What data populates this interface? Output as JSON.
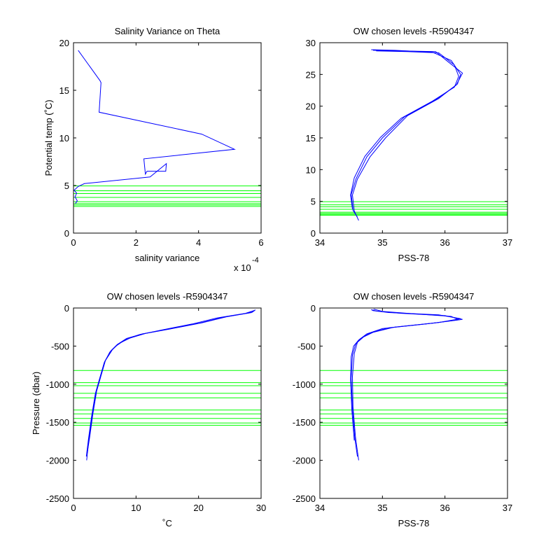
{
  "chart_data": [
    {
      "type": "line",
      "title": "Salinity Variance on Theta",
      "xlabel": "salinity variance",
      "ylabel": "Potential temp (˚C)",
      "x_exponent_label": "x 10",
      "x_exponent_power": "-4",
      "xlim": [
        0,
        6
      ],
      "ylim": [
        0,
        20
      ],
      "xticks": [
        0,
        2,
        4,
        6
      ],
      "yticks": [
        0,
        5,
        10,
        15,
        20
      ],
      "grid": false,
      "series": [
        {
          "color": "#0000ff",
          "points": [
            [
              0.15,
              19.2
            ],
            [
              0.85,
              16.0
            ],
            [
              0.88,
              15.8
            ],
            [
              0.82,
              12.7
            ],
            [
              4.1,
              10.4
            ],
            [
              5.15,
              8.8
            ],
            [
              2.25,
              7.8
            ],
            [
              2.3,
              6.2
            ],
            [
              2.35,
              6.5
            ],
            [
              2.95,
              6.5
            ],
            [
              2.97,
              7.3
            ],
            [
              2.45,
              5.9
            ],
            [
              0.35,
              5.2
            ],
            [
              0.15,
              4.9
            ],
            [
              0.02,
              4.5
            ],
            [
              0.1,
              4.2
            ],
            [
              0.05,
              3.8
            ],
            [
              0.12,
              3.4
            ],
            [
              0.06,
              3.1
            ]
          ]
        }
      ],
      "level_lines": {
        "color": "#00ff00",
        "values": [
          4.95,
          4.45,
          4.15,
          3.75,
          3.3,
          3.1,
          2.95,
          2.8
        ]
      }
    },
    {
      "type": "line",
      "title": "OW chosen levels -R5904347",
      "xlabel": "PSS-78",
      "ylabel": "",
      "xlim": [
        34,
        37
      ],
      "ylim": [
        0,
        30
      ],
      "xticks": [
        34,
        35,
        36,
        37
      ],
      "yticks": [
        0,
        5,
        10,
        15,
        20,
        25,
        30
      ],
      "grid": false,
      "series": [
        {
          "color": "#0000ff",
          "points": [
            [
              34.82,
              28.9
            ],
            [
              35.2,
              28.8
            ],
            [
              35.8,
              28.5
            ],
            [
              36.1,
              27.2
            ],
            [
              36.25,
              25.0
            ],
            [
              36.2,
              23.5
            ],
            [
              35.9,
              21.2
            ],
            [
              35.4,
              18.5
            ],
            [
              35.05,
              15.0
            ],
            [
              34.8,
              12.0
            ],
            [
              34.6,
              8.5
            ],
            [
              34.52,
              6.0
            ],
            [
              34.55,
              3.5
            ],
            [
              34.62,
              2.0
            ]
          ]
        },
        {
          "color": "#0000ff",
          "points": [
            [
              34.85,
              28.8
            ],
            [
              35.3,
              28.7
            ],
            [
              35.85,
              28.6
            ],
            [
              36.05,
              27.0
            ],
            [
              36.28,
              25.2
            ],
            [
              36.18,
              23.3
            ],
            [
              35.85,
              21.0
            ],
            [
              35.35,
              18.3
            ],
            [
              35.0,
              15.0
            ],
            [
              34.75,
              12.0
            ],
            [
              34.58,
              8.6
            ],
            [
              34.5,
              6.1
            ],
            [
              34.53,
              3.6
            ],
            [
              34.6,
              2.5
            ]
          ]
        },
        {
          "color": "#0000ff",
          "points": [
            [
              34.9,
              28.7
            ],
            [
              35.4,
              28.6
            ],
            [
              35.9,
              28.4
            ],
            [
              36.15,
              26.5
            ],
            [
              36.22,
              24.7
            ],
            [
              36.15,
              23.0
            ],
            [
              35.8,
              20.8
            ],
            [
              35.3,
              18.1
            ],
            [
              34.97,
              15.1
            ],
            [
              34.72,
              12.1
            ],
            [
              34.55,
              8.7
            ],
            [
              34.49,
              6.0
            ],
            [
              34.52,
              3.8
            ]
          ]
        }
      ],
      "level_lines": {
        "color": "#00ff00",
        "values": [
          4.95,
          4.45,
          4.15,
          3.75,
          3.3,
          3.1,
          2.95,
          2.8
        ]
      }
    },
    {
      "type": "line",
      "title": "OW chosen levels -R5904347",
      "xlabel": "˚C",
      "ylabel": "Pressure (dbar)",
      "xlim": [
        0,
        30
      ],
      "ylim": [
        -2500,
        0
      ],
      "xticks": [
        0,
        10,
        20,
        30
      ],
      "yticks": [
        -2500,
        -2000,
        -1500,
        -1000,
        -500,
        0
      ],
      "grid": false,
      "series": [
        {
          "color": "#0000ff",
          "points": [
            [
              29.0,
              -30
            ],
            [
              28.5,
              -60
            ],
            [
              24.0,
              -120
            ],
            [
              20.0,
              -200
            ],
            [
              15.0,
              -280
            ],
            [
              11.0,
              -340
            ],
            [
              8.5,
              -400
            ],
            [
              7.0,
              -480
            ],
            [
              6.0,
              -560
            ],
            [
              5.0,
              -700
            ],
            [
              4.3,
              -900
            ],
            [
              3.6,
              -1100
            ],
            [
              3.0,
              -1400
            ],
            [
              2.5,
              -1700
            ],
            [
              2.1,
              -2000
            ]
          ]
        },
        {
          "color": "#0000ff",
          "points": [
            [
              28.8,
              -35
            ],
            [
              27.5,
              -70
            ],
            [
              23.0,
              -130
            ],
            [
              19.0,
              -210
            ],
            [
              14.0,
              -290
            ],
            [
              10.5,
              -350
            ],
            [
              8.2,
              -420
            ],
            [
              6.8,
              -500
            ],
            [
              5.8,
              -580
            ],
            [
              4.9,
              -720
            ],
            [
              4.2,
              -920
            ],
            [
              3.5,
              -1120
            ],
            [
              2.9,
              -1420
            ],
            [
              2.4,
              -1720
            ],
            [
              2.05,
              -1950
            ]
          ]
        },
        {
          "color": "#0000ff",
          "points": [
            [
              29.1,
              -25
            ],
            [
              28.0,
              -65
            ],
            [
              24.5,
              -115
            ],
            [
              20.5,
              -195
            ],
            [
              15.5,
              -275
            ],
            [
              11.5,
              -335
            ],
            [
              9.0,
              -395
            ],
            [
              7.2,
              -470
            ],
            [
              6.2,
              -550
            ],
            [
              5.1,
              -690
            ],
            [
              4.4,
              -890
            ],
            [
              3.7,
              -1090
            ],
            [
              3.1,
              -1390
            ],
            [
              2.6,
              -1690
            ],
            [
              2.2,
              -1900
            ]
          ]
        }
      ],
      "level_lines": {
        "color": "#00ff00",
        "values": [
          -820,
          -980,
          -1020,
          -1120,
          -1180,
          -1340,
          -1390,
          -1450,
          -1510,
          -1540
        ]
      }
    },
    {
      "type": "line",
      "title": "OW chosen levels -R5904347",
      "xlabel": "PSS-78",
      "ylabel": "",
      "xlim": [
        34,
        37
      ],
      "ylim": [
        -2500,
        0
      ],
      "xticks": [
        34,
        35,
        36,
        37
      ],
      "yticks": [
        -2500,
        -2000,
        -1500,
        -1000,
        -500,
        0
      ],
      "grid": false,
      "series": [
        {
          "color": "#0000ff",
          "points": [
            [
              34.82,
              -20
            ],
            [
              34.85,
              -35
            ],
            [
              35.1,
              -60
            ],
            [
              35.9,
              -90
            ],
            [
              36.25,
              -140
            ],
            [
              35.9,
              -190
            ],
            [
              35.2,
              -250
            ],
            [
              34.85,
              -320
            ],
            [
              34.7,
              -380
            ],
            [
              34.6,
              -450
            ],
            [
              34.55,
              -600
            ],
            [
              34.52,
              -900
            ],
            [
              34.53,
              -1300
            ],
            [
              34.57,
              -1700
            ],
            [
              34.62,
              -2000
            ]
          ]
        },
        {
          "color": "#0000ff",
          "points": [
            [
              34.84,
              -25
            ],
            [
              34.9,
              -40
            ],
            [
              35.3,
              -70
            ],
            [
              36.0,
              -100
            ],
            [
              36.28,
              -150
            ],
            [
              35.8,
              -200
            ],
            [
              35.1,
              -260
            ],
            [
              34.8,
              -330
            ],
            [
              34.65,
              -400
            ],
            [
              34.57,
              -480
            ],
            [
              34.52,
              -620
            ],
            [
              34.5,
              -920
            ],
            [
              34.52,
              -1320
            ],
            [
              34.56,
              -1720
            ],
            [
              34.6,
              -1950
            ]
          ]
        },
        {
          "color": "#0000ff",
          "points": [
            [
              34.86,
              -15
            ],
            [
              35.0,
              -45
            ],
            [
              35.5,
              -75
            ],
            [
              36.1,
              -110
            ],
            [
              36.22,
              -155
            ],
            [
              35.7,
              -210
            ],
            [
              35.0,
              -270
            ],
            [
              34.75,
              -340
            ],
            [
              34.62,
              -420
            ],
            [
              34.54,
              -500
            ],
            [
              34.5,
              -640
            ],
            [
              34.49,
              -940
            ],
            [
              34.51,
              -1340
            ],
            [
              34.55,
              -1740
            ]
          ]
        }
      ],
      "level_lines": {
        "color": "#00ff00",
        "values": [
          -820,
          -980,
          -1020,
          -1120,
          -1180,
          -1340,
          -1390,
          -1450,
          -1510,
          -1540
        ]
      }
    }
  ]
}
